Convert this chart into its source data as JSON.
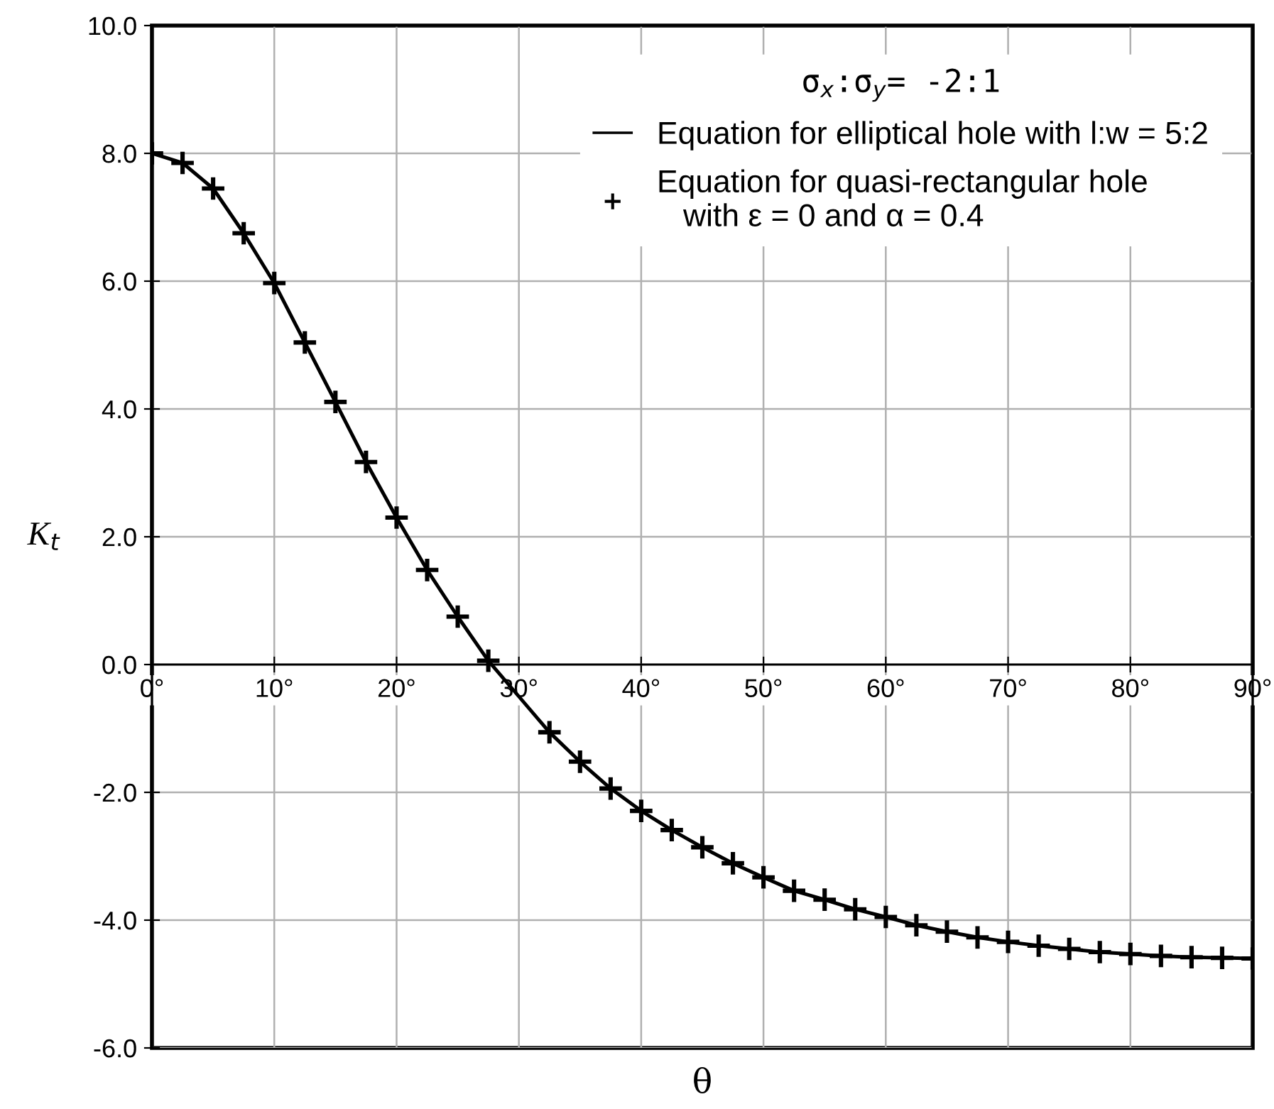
{
  "chart_data": {
    "type": "line",
    "xlabel": "θ",
    "ylabel": "K$_{t}$",
    "legend_title": "σ$_{x}$:σ$_{y}$= -2:1",
    "x": [
      0,
      2.5,
      5,
      7.5,
      10,
      12.5,
      15,
      17.5,
      20,
      22.5,
      25,
      27.5,
      30,
      32.5,
      35,
      37.5,
      40,
      42.5,
      45,
      47.5,
      50,
      52.5,
      55,
      57.5,
      60,
      62.5,
      65,
      67.5,
      70,
      72.5,
      75,
      77.5,
      80,
      82.5,
      85,
      87.5,
      90
    ],
    "series": [
      {
        "name": "Equation for elliptical hole with l:w = 5:2",
        "color": "#000000",
        "values": [
          8.0,
          7.85,
          7.45,
          6.75,
          5.97,
          5.04,
          4.11,
          3.17,
          2.3,
          1.48,
          0.75,
          0.06,
          -0.5,
          -1.06,
          -1.52,
          -1.94,
          -2.29,
          -2.59,
          -2.86,
          -3.11,
          -3.33,
          -3.54,
          -3.68,
          -3.83,
          -3.95,
          -4.08,
          -4.18,
          -4.27,
          -4.34,
          -4.4,
          -4.45,
          -4.5,
          -4.53,
          -4.56,
          -4.58,
          -4.59,
          -4.6
        ]
      },
      {
        "name": "Equation for quasi-rectangular hole\n   with ε = 0 and α = 0.4",
        "type": "scatter",
        "marker": "cross",
        "color": "#000000",
        "values": [
          8.0,
          7.85,
          7.45,
          6.75,
          5.97,
          5.04,
          4.11,
          3.17,
          2.3,
          1.48,
          0.75,
          0.06,
          null,
          -1.06,
          -1.52,
          -1.94,
          -2.29,
          -2.59,
          -2.86,
          -3.11,
          -3.33,
          -3.54,
          -3.68,
          -3.83,
          -3.95,
          -4.08,
          -4.18,
          -4.27,
          -4.34,
          -4.4,
          -4.45,
          -4.5,
          -4.53,
          -4.56,
          -4.58,
          -4.59,
          -4.6
        ]
      }
    ],
    "xlim": [
      0,
      90
    ],
    "xticks": [
      {
        "value": 0,
        "label": "0°"
      },
      {
        "value": 10,
        "label": "10°"
      },
      {
        "value": 20,
        "label": "20°"
      },
      {
        "value": 30,
        "label": "30°"
      },
      {
        "value": 40,
        "label": "40°"
      },
      {
        "value": 50,
        "label": "50°"
      },
      {
        "value": 60,
        "label": "60°"
      },
      {
        "value": 70,
        "label": "70°"
      },
      {
        "value": 80,
        "label": "80°"
      },
      {
        "value": 90,
        "label": "90°"
      }
    ],
    "ylim": [
      -6,
      10
    ],
    "yticks": [
      {
        "value": -6,
        "label": "-6.0"
      },
      {
        "value": -4,
        "label": "-4.0"
      },
      {
        "value": -2,
        "label": "-2.0"
      },
      {
        "value": 0,
        "label": "0.0"
      },
      {
        "value": 2,
        "label": "2.0"
      },
      {
        "value": 4,
        "label": "4.0"
      },
      {
        "value": 6,
        "label": "6.0"
      },
      {
        "value": 8,
        "label": "8.0"
      },
      {
        "value": 10,
        "label": "10.0"
      }
    ],
    "grid": true,
    "legend": "top right"
  }
}
